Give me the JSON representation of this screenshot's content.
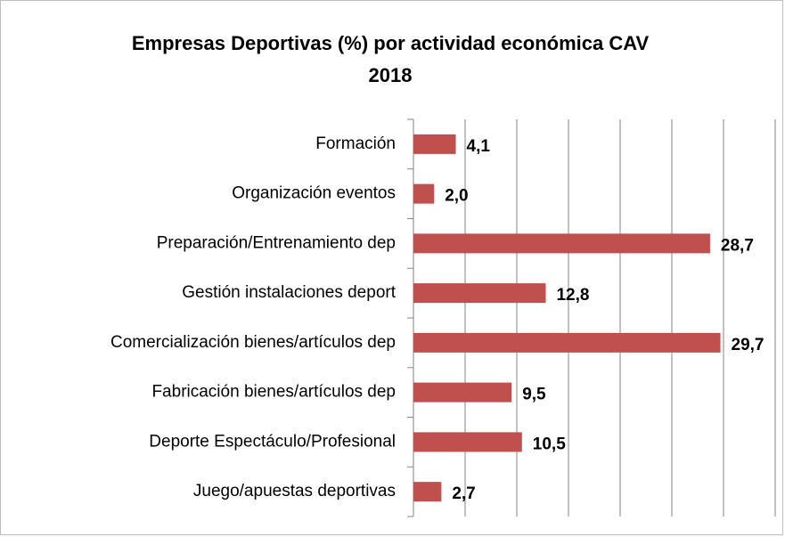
{
  "chart_data": {
    "type": "barh",
    "title": [
      "Empresas Deportivas (%) por actividad económica CAV",
      "2018"
    ],
    "categories": [
      "Formación",
      "Organización eventos",
      "Preparación/Entrenamiento dep",
      "Gestión instalaciones deport",
      "Comercialización bienes/artículos dep",
      "Fabricación bienes/artículos dep",
      "Deporte Espectáculo/Profesional",
      "Juego/apuestas deportivas"
    ],
    "values": [
      4.1,
      2.0,
      28.7,
      12.8,
      29.7,
      9.5,
      10.5,
      2.7
    ],
    "value_labels": [
      "4,1",
      "2,0",
      "28,7",
      "12,8",
      "29,7",
      "9,5",
      "10,5",
      "2,7"
    ],
    "color": "#c0504d",
    "xlim": [
      0,
      35
    ],
    "xticks": [
      0,
      5,
      10,
      15,
      20,
      25,
      30,
      35
    ],
    "grid": true
  }
}
